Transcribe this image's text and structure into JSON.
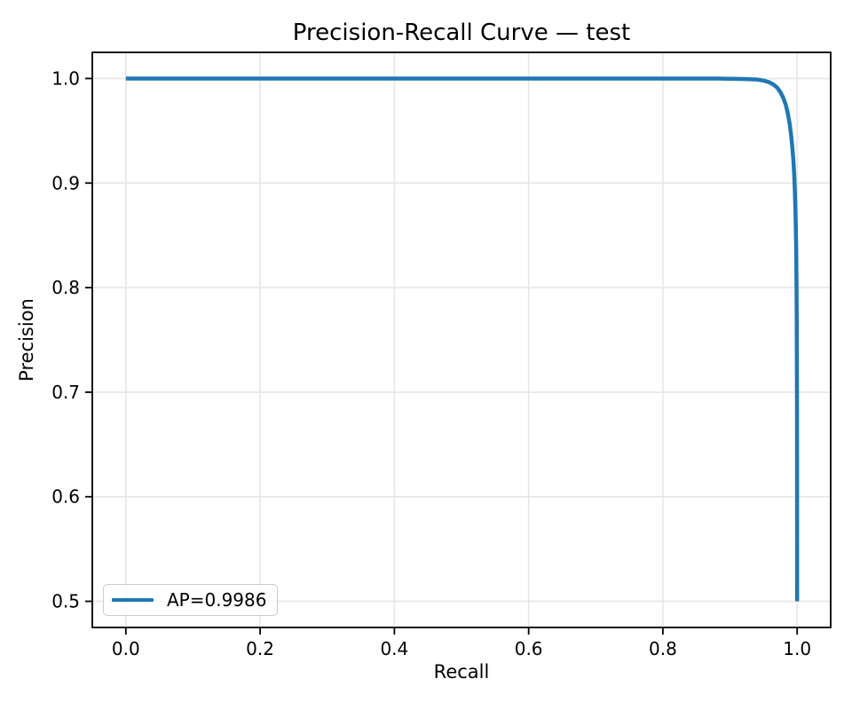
{
  "figure": {
    "background": "#ffffff"
  },
  "chart_data": {
    "type": "line",
    "title": "Precision-Recall Curve — test",
    "xlabel": "Recall",
    "ylabel": "Precision",
    "xlim": [
      -0.05,
      1.05
    ],
    "ylim": [
      0.475,
      1.025
    ],
    "x_ticks": [
      0.0,
      0.2,
      0.4,
      0.6,
      0.8,
      1.0
    ],
    "x_tick_labels": [
      "0.0",
      "0.2",
      "0.4",
      "0.6",
      "0.8",
      "1.0"
    ],
    "y_ticks": [
      0.5,
      0.6,
      0.7,
      0.8,
      0.9,
      1.0
    ],
    "y_tick_labels": [
      "0.5",
      "0.6",
      "0.7",
      "0.8",
      "0.9",
      "1.0"
    ],
    "grid": true,
    "legend": {
      "position": "lower left",
      "entries": [
        {
          "label": "AP=0.9986",
          "color": "#1f77b4"
        }
      ]
    },
    "series": [
      {
        "name": "AP=0.9986",
        "color": "#1f77b4",
        "points": [
          [
            0.0,
            1.0
          ],
          [
            0.88,
            1.0
          ],
          [
            0.92,
            0.9995
          ],
          [
            0.94,
            0.999
          ],
          [
            0.95,
            0.998
          ],
          [
            0.958,
            0.9965
          ],
          [
            0.964,
            0.9945
          ],
          [
            0.97,
            0.9915
          ],
          [
            0.975,
            0.987
          ],
          [
            0.979,
            0.982
          ],
          [
            0.983,
            0.975
          ],
          [
            0.986,
            0.967
          ],
          [
            0.989,
            0.956
          ],
          [
            0.991,
            0.946
          ],
          [
            0.993,
            0.933
          ],
          [
            0.9945,
            0.921
          ],
          [
            0.9957,
            0.907
          ],
          [
            0.9966,
            0.893
          ],
          [
            0.9973,
            0.878
          ],
          [
            0.9979,
            0.862
          ],
          [
            0.9984,
            0.845
          ],
          [
            0.9988,
            0.825
          ],
          [
            0.9991,
            0.8
          ],
          [
            0.9994,
            0.77
          ],
          [
            0.9996,
            0.73
          ],
          [
            0.9998,
            0.68
          ],
          [
            0.9999,
            0.62
          ],
          [
            1.0,
            0.5
          ]
        ]
      }
    ]
  },
  "colors": {
    "line": "#1f77b4",
    "grid": "#e6e6e6",
    "spine": "#000000",
    "tick_text": "#000000"
  }
}
